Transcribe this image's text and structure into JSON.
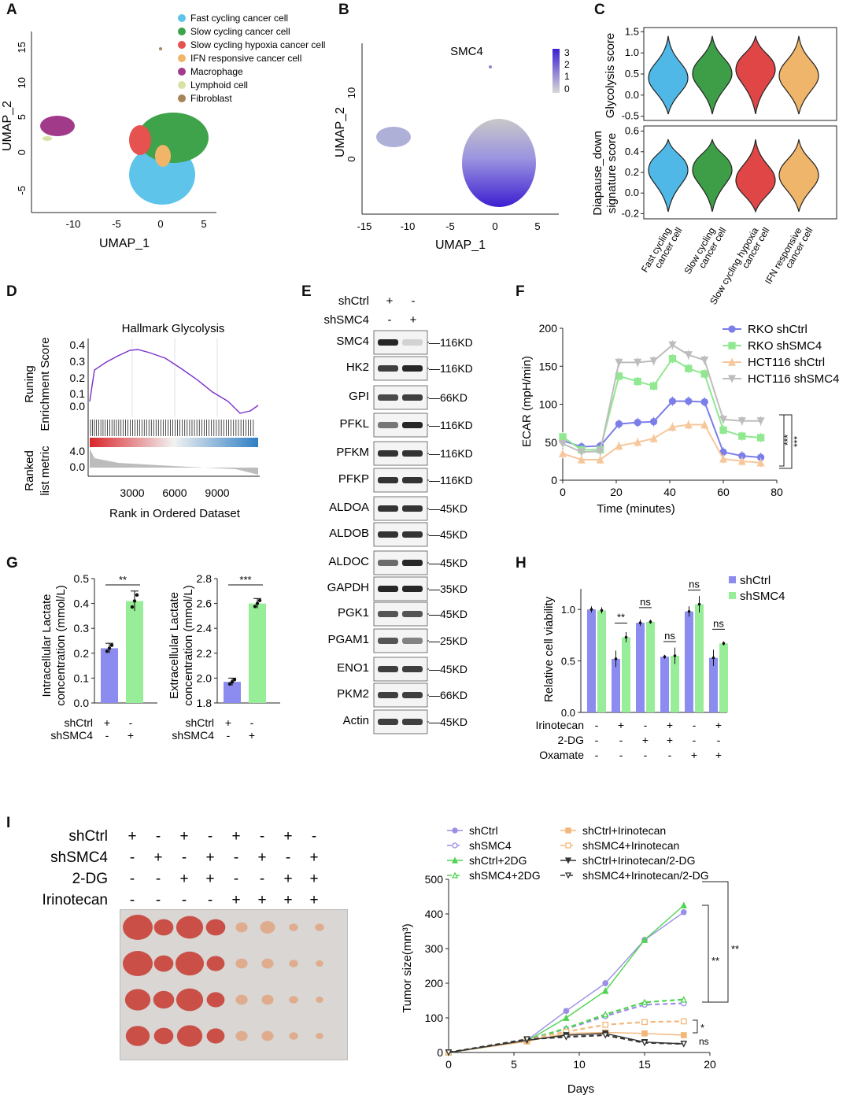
{
  "panels": {
    "A": {
      "letter": "A",
      "xlabel": "UMAP_1",
      "ylabel": "UMAP_2",
      "xticks": [
        "-10",
        "-5",
        "0",
        "5"
      ],
      "yticks": [
        "15",
        "10",
        "5",
        "0",
        "-5"
      ],
      "legend": [
        {
          "label": "Fast cycling cancer cell",
          "color": "#5ec4ea"
        },
        {
          "label": "Slow cycling cancer cell",
          "color": "#3ea34a"
        },
        {
          "label": "Slow cycling hypoxia cancer cell",
          "color": "#e5524f"
        },
        {
          "label": "IFN responsive cancer cell",
          "color": "#f1b56a"
        },
        {
          "label": "Macrophage",
          "color": "#a23a8a"
        },
        {
          "label": "Lymphoid cell",
          "color": "#d9e2a4"
        },
        {
          "label": "Fibroblast",
          "color": "#a78459"
        }
      ]
    },
    "B": {
      "letter": "B",
      "title": "SMC4",
      "xlabel": "UMAP_1",
      "ylabel": "UMAP_2",
      "xticks": [
        "-15",
        "-10",
        "-5",
        "0",
        "5"
      ],
      "yticks": [
        "10",
        "0"
      ],
      "colorbar": [
        "3",
        "2",
        "1",
        "0"
      ]
    },
    "C": {
      "letter": "C",
      "top_ylabel": "Glycolysis score",
      "top_yticks": [
        "1.5",
        "1.0",
        "0.5",
        "0.0",
        "-0.5"
      ],
      "bottom_ylabel_1": "Diapause_down",
      "bottom_ylabel_2": "signature score",
      "bottom_yticks": [
        "0.6",
        "0.4",
        "0.2",
        "0.0",
        "-0.2"
      ],
      "groups": [
        {
          "line1": "Fast cycling",
          "line2": "cancer cell",
          "color": "#4fb8e6"
        },
        {
          "line1": "Slow cycling",
          "line2": "cancer cell",
          "color": "#3e9e48"
        },
        {
          "line1": "Slow cycling hypoxia",
          "line2": "cancer cell",
          "color": "#e04646"
        },
        {
          "line1": "IFN responsive",
          "line2": "cancer cell",
          "color": "#efb56a"
        }
      ]
    },
    "D": {
      "letter": "D",
      "title": "Hallmark Glycolysis",
      "ylabel_1": "Runing",
      "ylabel_2": "Enrichment Score",
      "yticks": [
        "0.4",
        "0.3",
        "0.2",
        "0.1",
        "0.0"
      ],
      "ylabel2_1": "Ranked",
      "ylabel2_2": "list metric",
      "yticks2": [
        "4.0",
        "0.0"
      ],
      "xticks": [
        "3000",
        "6000",
        "9000"
      ],
      "xlabel": "Rank in Ordered Dataset"
    },
    "E": {
      "letter": "E",
      "row1": "shCtrl",
      "row2": "shSMC4",
      "signs": [
        "+",
        "-",
        "-",
        "+"
      ],
      "bands": [
        {
          "name": "SMC4",
          "size": "116KD"
        },
        {
          "name": "HK2",
          "size": "116KD"
        },
        {
          "name": "GPI",
          "size": "66KD"
        },
        {
          "name": "PFKL",
          "size": "116KD"
        },
        {
          "name": "PFKM",
          "size": "116KD"
        },
        {
          "name": "PFKP",
          "size": "116KD"
        },
        {
          "name": "ALDOA",
          "size": "45KD"
        },
        {
          "name": "ALDOB",
          "size": "45KD"
        },
        {
          "name": "ALDOC",
          "size": "45KD"
        },
        {
          "name": "GAPDH",
          "size": "35KD"
        },
        {
          "name": "PGK1",
          "size": "45KD"
        },
        {
          "name": "PGAM1",
          "size": "25KD"
        },
        {
          "name": "ENO1",
          "size": "45KD"
        },
        {
          "name": "PKM2",
          "size": "66KD"
        },
        {
          "name": "Actin",
          "size": "45KD"
        }
      ]
    },
    "F": {
      "letter": "F",
      "xlabel": "Time (minutes)",
      "ylabel": "ECAR (mpH/min)",
      "sig1": "***",
      "sig2": "***"
    },
    "G": {
      "letter": "G",
      "left": {
        "ylabel_1": "Intracellular Lactate",
        "ylabel_2": "concentration (mmol/L)",
        "yticks": [
          "0.5",
          "0.4",
          "0.3",
          "0.2",
          "0.1",
          "0.0"
        ],
        "sig": "**"
      },
      "right": {
        "ylabel_1": "Extracellular Lactate",
        "ylabel_2": "concentration (mmol/L)",
        "yticks": [
          "2.8",
          "2.6",
          "2.4",
          "2.2",
          "2.0",
          "1.8"
        ],
        "sig": "***"
      },
      "row1": "shCtrl",
      "row2": "shSMC4",
      "signs": [
        "+",
        "-",
        "-",
        "+"
      ]
    },
    "H": {
      "letter": "H",
      "ylabel": "Relative cell viability",
      "yticks": [
        "1.0",
        "0.5",
        "0.0"
      ],
      "legend": [
        "shCtrl",
        "shSMC4"
      ],
      "sigs": [
        "**",
        "ns",
        "ns",
        "ns",
        "ns"
      ],
      "rows": [
        {
          "label": "Irinotecan",
          "signs": [
            "-",
            "+",
            "-",
            "+",
            "-",
            "+"
          ]
        },
        {
          "label": "2-DG",
          "signs": [
            "-",
            "-",
            "+",
            "+",
            "-",
            "-"
          ]
        },
        {
          "label": "Oxamate",
          "signs": [
            "-",
            "-",
            "-",
            "-",
            "+",
            "+"
          ]
        }
      ]
    },
    "I": {
      "letter": "I",
      "rows": [
        {
          "label": "shCtrl",
          "signs": [
            "+",
            "-",
            "+",
            "-",
            "+",
            "-",
            "+",
            "-"
          ]
        },
        {
          "label": "shSMC4",
          "signs": [
            "-",
            "+",
            "-",
            "+",
            "-",
            "+",
            "-",
            "+"
          ]
        },
        {
          "label": "2-DG",
          "signs": [
            "-",
            "-",
            "+",
            "+",
            "-",
            "-",
            "+",
            "+"
          ]
        },
        {
          "label": "Irinotecan",
          "signs": [
            "-",
            "-",
            "-",
            "-",
            "+",
            "+",
            "+",
            "+"
          ]
        }
      ],
      "legend": [
        "shCtrl",
        "shSMC4",
        "shCtrl+2DG",
        "shSMC4+2DG",
        "shCtrl+Irinotecan",
        "shSMC4+Irinotecan",
        "shCtrl+Irinotecan/2-DG",
        "shSMC4+Irinotecan/2-DG"
      ],
      "xlabel": "Days",
      "ylabel": "Tumor size(mm³)",
      "sigs": [
        "**",
        "**",
        "*",
        "ns"
      ]
    }
  },
  "chart_data": [
    {
      "id": "F",
      "type": "line",
      "title": "",
      "xlabel": "Time (minutes)",
      "ylabel": "ECAR (mpH/min)",
      "xlim": [
        0,
        80
      ],
      "ylim": [
        0,
        200
      ],
      "xticks": [
        0,
        20,
        40,
        60,
        80
      ],
      "yticks": [
        0,
        50,
        100,
        150,
        200
      ],
      "x": [
        0,
        7,
        14,
        21,
        28,
        34,
        41,
        47,
        53,
        60,
        67,
        74
      ],
      "series": [
        {
          "name": "RKO shCtrl",
          "color": "#7b7ee8",
          "marker": "circle",
          "values": [
            52,
            44,
            45,
            74,
            76,
            77,
            104,
            104,
            103,
            37,
            32,
            30
          ]
        },
        {
          "name": "RKO shSMC4",
          "color": "#90e890",
          "marker": "square",
          "values": [
            57,
            40,
            40,
            137,
            130,
            124,
            160,
            147,
            140,
            66,
            58,
            56
          ]
        },
        {
          "name": "HCT116 shCtrl",
          "color": "#f7c79c",
          "marker": "triangle-up",
          "values": [
            35,
            27,
            27,
            45,
            50,
            55,
            70,
            73,
            73,
            28,
            25,
            23
          ]
        },
        {
          "name": "HCT116 shSMC4",
          "color": "#bdbdbd",
          "marker": "triangle-down",
          "values": [
            48,
            37,
            38,
            155,
            155,
            157,
            178,
            165,
            158,
            80,
            78,
            78
          ]
        }
      ]
    },
    {
      "id": "G-left",
      "type": "bar",
      "ylabel": "Intracellular Lactate concentration (mmol/L)",
      "categories": [
        "shCtrl",
        "shSMC4"
      ],
      "values": [
        0.22,
        0.41
      ],
      "err": [
        0.02,
        0.04
      ],
      "ylim": [
        0,
        0.5
      ],
      "colors": [
        "#8b8bf0",
        "#98ee98"
      ]
    },
    {
      "id": "G-right",
      "type": "bar",
      "ylabel": "Extracellular Lactate concentration (mmol/L)",
      "categories": [
        "shCtrl",
        "shSMC4"
      ],
      "values": [
        1.97,
        2.6
      ],
      "err": [
        0.03,
        0.04
      ],
      "ylim": [
        1.8,
        2.8
      ],
      "colors": [
        "#8b8bf0",
        "#98ee98"
      ]
    },
    {
      "id": "H",
      "type": "bar",
      "ylabel": "Relative cell viability",
      "ylim": [
        0,
        1.2
      ],
      "categories": [
        "1",
        "2",
        "3",
        "4",
        "5",
        "6"
      ],
      "series": [
        {
          "name": "shCtrl",
          "color": "#8b8bf0",
          "values": [
            1.0,
            0.52,
            0.87,
            0.54,
            0.98,
            0.53
          ],
          "err": [
            0.03,
            0.08,
            0.03,
            0.02,
            0.05,
            0.08
          ]
        },
        {
          "name": "shSMC4",
          "color": "#98ee98",
          "values": [
            0.99,
            0.73,
            0.88,
            0.55,
            1.05,
            0.67
          ],
          "err": [
            0.03,
            0.05,
            0.02,
            0.08,
            0.08,
            0.02
          ]
        }
      ]
    },
    {
      "id": "I",
      "type": "line",
      "xlabel": "Days",
      "ylabel": "Tumor size(mm³)",
      "xlim": [
        0,
        20
      ],
      "ylim": [
        0,
        500
      ],
      "xticks": [
        0,
        5,
        10,
        15,
        20
      ],
      "yticks": [
        0,
        100,
        200,
        300,
        400,
        500
      ],
      "x": [
        0,
        6,
        9,
        12,
        15,
        18
      ],
      "series": [
        {
          "name": "shCtrl",
          "color": "#9a8fe6",
          "dash": "",
          "marker": "circle",
          "values": [
            0,
            35,
            120,
            200,
            325,
            405
          ]
        },
        {
          "name": "shSMC4",
          "color": "#9a8fe6",
          "dash": "6,4",
          "marker": "circle-open",
          "values": [
            0,
            38,
            68,
            105,
            138,
            142
          ]
        },
        {
          "name": "shCtrl+2DG",
          "color": "#4fd44f",
          "dash": "",
          "marker": "triangle-up",
          "values": [
            0,
            33,
            100,
            178,
            325,
            425
          ]
        },
        {
          "name": "shSMC4+2DG",
          "color": "#4fd44f",
          "dash": "6,4",
          "marker": "triangle-open",
          "values": [
            0,
            36,
            70,
            110,
            145,
            153
          ]
        },
        {
          "name": "shCtrl+Irinotecan",
          "color": "#f2b779",
          "dash": "",
          "marker": "square",
          "values": [
            0,
            32,
            55,
            58,
            55,
            50
          ]
        },
        {
          "name": "shSMC4+Irinotecan",
          "color": "#f2b779",
          "dash": "6,4",
          "marker": "square-open",
          "values": [
            0,
            38,
            60,
            80,
            88,
            90
          ]
        },
        {
          "name": "shCtrl+Irinotecan/2-DG",
          "color": "#333333",
          "dash": "",
          "marker": "triangle-down",
          "values": [
            0,
            35,
            50,
            55,
            30,
            25
          ]
        },
        {
          "name": "shSMC4+Irinotecan/2-DG",
          "color": "#333333",
          "dash": "6,4",
          "marker": "triangle-down-open",
          "values": [
            0,
            38,
            45,
            50,
            28,
            25
          ]
        }
      ]
    },
    {
      "id": "C-top",
      "type": "violin",
      "ylabel": "Glycolysis score",
      "ylim": [
        -0.6,
        1.6
      ],
      "categories": [
        "Fast cycling cancer cell",
        "Slow cycling cancer cell",
        "Slow cycling hypoxia cancer cell",
        "IFN responsive cancer cell"
      ],
      "medians": [
        0.4,
        0.5,
        0.6,
        0.45
      ]
    },
    {
      "id": "C-bottom",
      "type": "violin",
      "ylabel": "Diapause_down signature score",
      "ylim": [
        -0.25,
        0.65
      ],
      "categories": [
        "Fast cycling cancer cell",
        "Slow cycling cancer cell",
        "Slow cycling hypoxia cancer cell",
        "IFN responsive cancer cell"
      ],
      "medians": [
        0.22,
        0.22,
        0.12,
        0.17
      ]
    }
  ]
}
